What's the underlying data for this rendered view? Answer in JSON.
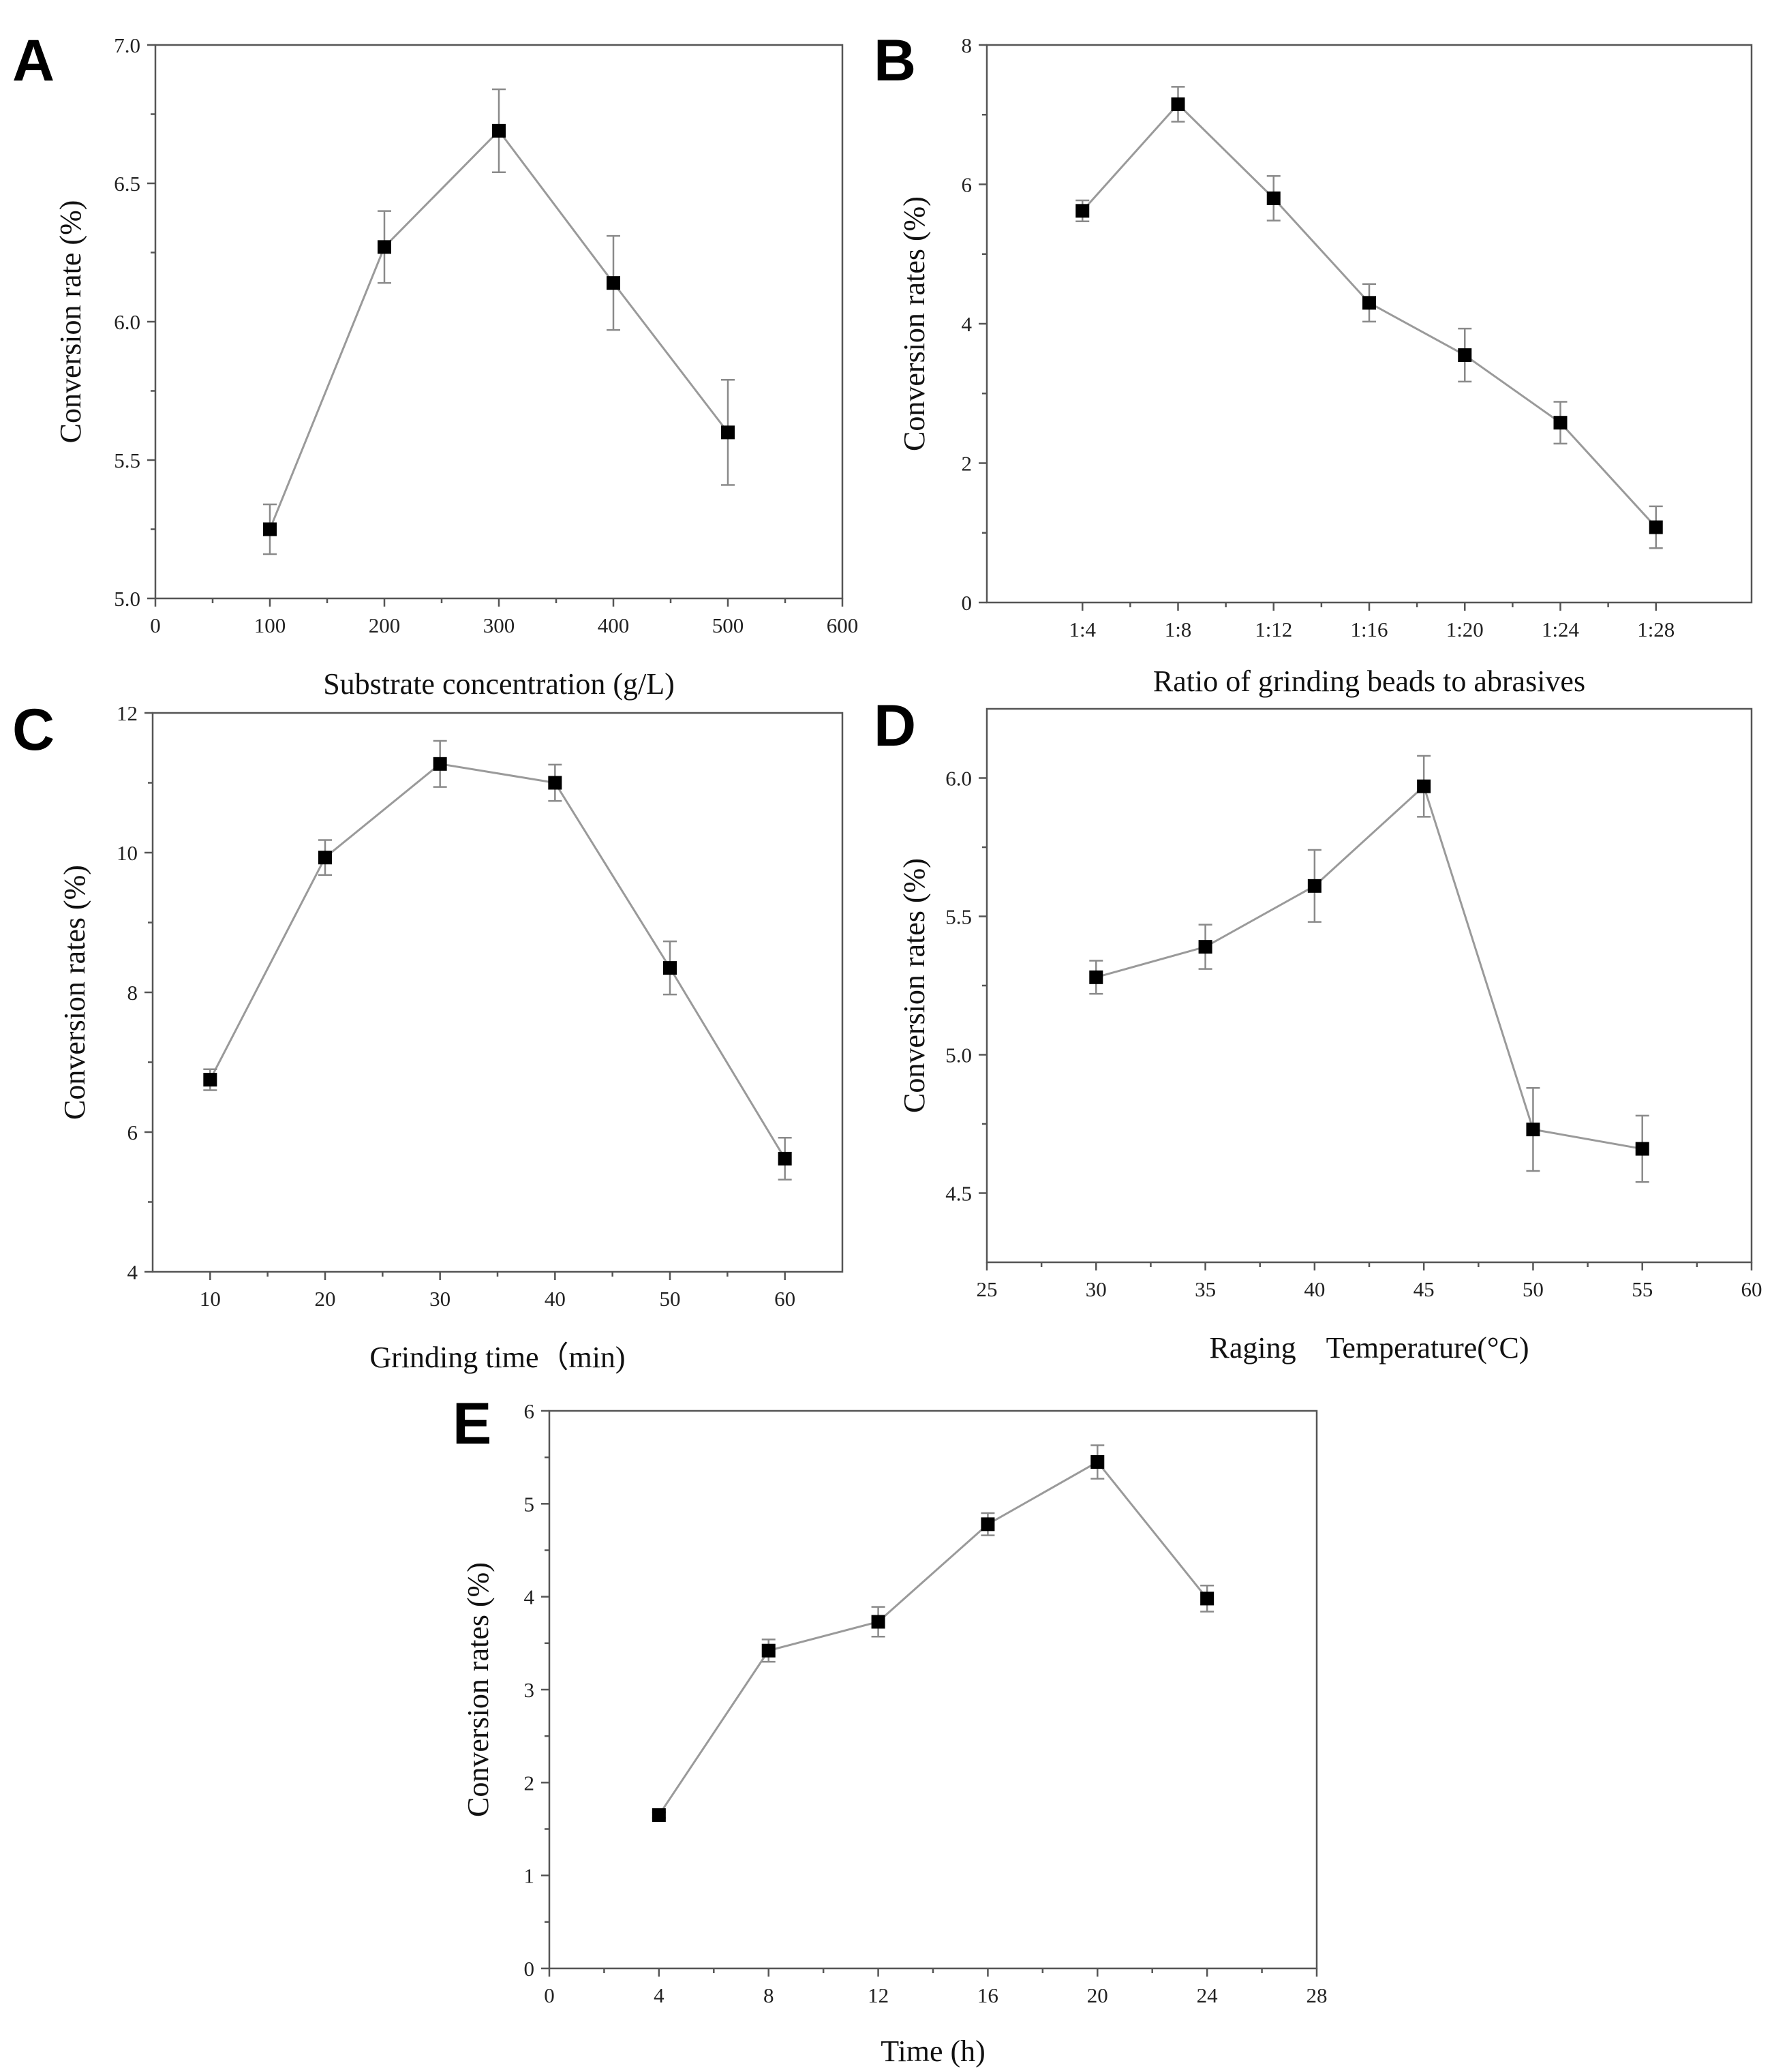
{
  "figure": {
    "colors": {
      "axis": "#555555",
      "line": "#9a9a9a",
      "marker": "#000000",
      "errorbar": "#8a8a8a"
    }
  },
  "chart_data": [
    {
      "panel": "A",
      "type": "line",
      "title": "",
      "xlabel": "Substrate concentration (g/L)",
      "ylabel": "Conversion rate (%)",
      "xlim": [
        0,
        600
      ],
      "ylim": [
        5.0,
        7.0
      ],
      "xticks": [
        0,
        100,
        200,
        300,
        400,
        500,
        600
      ],
      "xtick_labels": [
        "0",
        "100",
        "200",
        "300",
        "400",
        "500",
        "600"
      ],
      "yticks": [
        5.0,
        5.5,
        6.0,
        6.5,
        7.0
      ],
      "ytick_labels": [
        "5.0",
        "5.5",
        "6.0",
        "6.5",
        "7.0"
      ],
      "x": [
        100,
        200,
        300,
        400,
        500
      ],
      "values": [
        5.25,
        6.27,
        6.69,
        6.14,
        5.6
      ],
      "errors": [
        0.09,
        0.13,
        0.15,
        0.17,
        0.19
      ]
    },
    {
      "panel": "B",
      "type": "line",
      "title": "",
      "xlabel": "Ratio of grinding beads to abrasives",
      "ylabel": "Conversion rates (%)",
      "xlim": [
        0,
        8
      ],
      "ylim": [
        0,
        8
      ],
      "xticks": [
        1,
        2,
        3,
        4,
        5,
        6,
        7
      ],
      "xtick_labels": [
        "1:4",
        "1:8",
        "1:12",
        "1:16",
        "1:20",
        "1:24",
        "1:28"
      ],
      "yticks": [
        0,
        2,
        4,
        6,
        8
      ],
      "ytick_labels": [
        "0",
        "2",
        "4",
        "6",
        "8"
      ],
      "x": [
        1,
        2,
        3,
        4,
        5,
        6,
        7
      ],
      "values": [
        5.62,
        7.15,
        5.8,
        4.3,
        3.55,
        2.58,
        1.08
      ],
      "errors": [
        0.15,
        0.25,
        0.32,
        0.27,
        0.38,
        0.3,
        0.3
      ]
    },
    {
      "panel": "C",
      "type": "line",
      "title": "",
      "xlabel": "Grinding time（min)",
      "ylabel": "Conversion rates (%)",
      "xlim": [
        5,
        65
      ],
      "ylim": [
        4,
        12
      ],
      "xticks": [
        10,
        20,
        30,
        40,
        50,
        60
      ],
      "xtick_labels": [
        "10",
        "20",
        "30",
        "40",
        "50",
        "60"
      ],
      "yticks": [
        4,
        6,
        8,
        10,
        12
      ],
      "ytick_labels": [
        "4",
        "6",
        "8",
        "10",
        "12"
      ],
      "x": [
        10,
        20,
        30,
        40,
        50,
        60
      ],
      "values": [
        6.75,
        9.93,
        11.27,
        11.0,
        8.35,
        5.62
      ],
      "errors": [
        0.15,
        0.25,
        0.33,
        0.26,
        0.38,
        0.3
      ]
    },
    {
      "panel": "D",
      "type": "line",
      "title": "",
      "xlabel": "Raging　Temperature(°C)",
      "ylabel": "Conversion rates (%)",
      "xlim": [
        25,
        60
      ],
      "ylim": [
        4.25,
        6.25
      ],
      "xticks": [
        25,
        30,
        35,
        40,
        45,
        50,
        55,
        60
      ],
      "xtick_labels": [
        "25",
        "30",
        "35",
        "40",
        "45",
        "50",
        "55",
        "60"
      ],
      "yticks": [
        4.5,
        5.0,
        5.5,
        6.0
      ],
      "ytick_labels": [
        "4.5",
        "5.0",
        "5.5",
        "6.0"
      ],
      "x": [
        30,
        35,
        40,
        45,
        50,
        55
      ],
      "values": [
        5.28,
        5.39,
        5.61,
        5.97,
        4.73,
        4.66
      ],
      "errors": [
        0.06,
        0.08,
        0.13,
        0.11,
        0.15,
        0.12
      ]
    },
    {
      "panel": "E",
      "type": "line",
      "title": "",
      "xlabel": "Time (h)",
      "ylabel": "Conversion rates (%)",
      "xlim": [
        0,
        28
      ],
      "ylim": [
        0,
        6
      ],
      "xticks": [
        0,
        4,
        8,
        12,
        16,
        20,
        24,
        28
      ],
      "xtick_labels": [
        "0",
        "4",
        "8",
        "12",
        "16",
        "20",
        "24",
        "28"
      ],
      "yticks": [
        0,
        1,
        2,
        3,
        4,
        5,
        6
      ],
      "ytick_labels": [
        "0",
        "1",
        "2",
        "3",
        "4",
        "5",
        "6"
      ],
      "x": [
        4,
        8,
        12,
        16,
        20,
        24
      ],
      "values": [
        1.65,
        3.42,
        3.73,
        4.78,
        5.45,
        3.98
      ],
      "errors": [
        0.03,
        0.12,
        0.16,
        0.12,
        0.18,
        0.14
      ]
    }
  ]
}
